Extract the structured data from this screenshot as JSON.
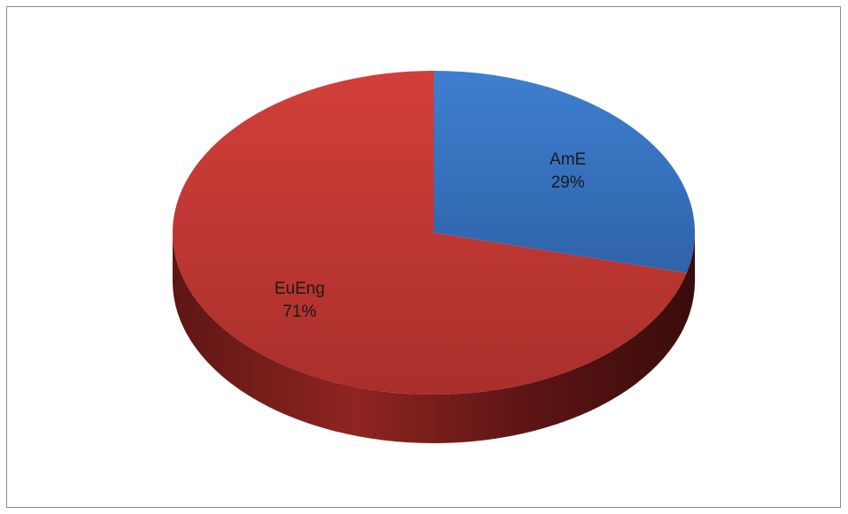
{
  "chart_data": {
    "type": "pie",
    "title": "",
    "categories": [
      "AmE",
      "EuEng"
    ],
    "values": [
      29,
      71
    ],
    "labels": [
      "29%",
      "71%"
    ],
    "colors": [
      "#3a72bf",
      "#bf3a35"
    ],
    "legend": "none"
  }
}
